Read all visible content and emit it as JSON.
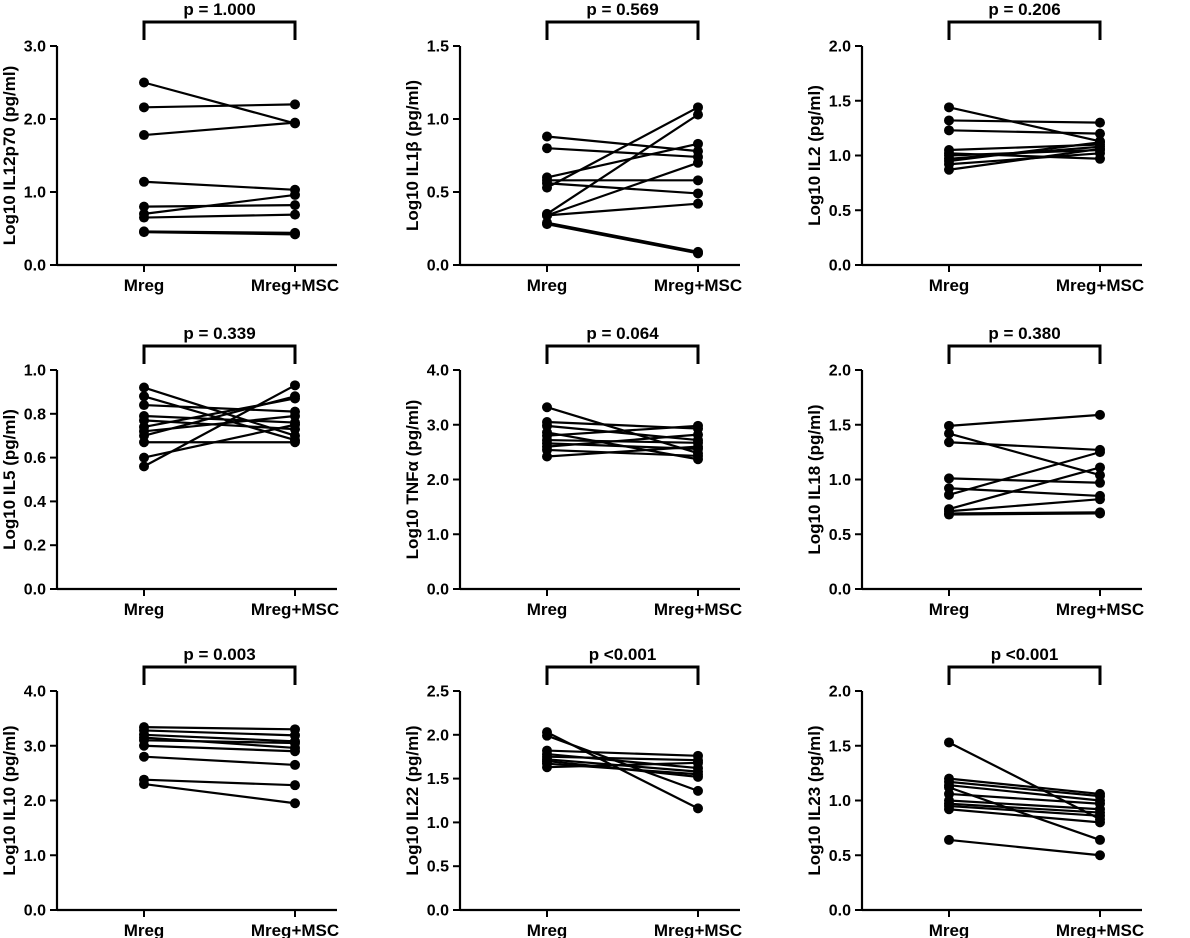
{
  "chart_data": [
    {
      "type": "line",
      "title": "p = 1.000",
      "ylabel": "Log10 IL12p70 (pg/ml)",
      "categories": [
        "Mreg",
        "Mreg+MSC"
      ],
      "ylim": [
        0,
        3
      ],
      "yticks": [
        0,
        1,
        2,
        3
      ],
      "tick_decimals": 1,
      "series": [
        {
          "values": [
            2.5,
            1.94
          ]
        },
        {
          "values": [
            2.16,
            2.2
          ]
        },
        {
          "values": [
            1.78,
            1.95
          ]
        },
        {
          "values": [
            1.14,
            1.03
          ]
        },
        {
          "values": [
            0.8,
            0.82
          ]
        },
        {
          "values": [
            0.7,
            0.96
          ]
        },
        {
          "values": [
            0.65,
            0.69
          ]
        },
        {
          "values": [
            0.46,
            0.44
          ]
        },
        {
          "values": [
            0.45,
            0.42
          ]
        }
      ]
    },
    {
      "type": "line",
      "title": "p = 0.569",
      "ylabel": "Log10 IL1β (pg/ml)",
      "categories": [
        "Mreg",
        "Mreg+MSC"
      ],
      "ylim": [
        0,
        1.5
      ],
      "yticks": [
        0,
        0.5,
        1,
        1.5
      ],
      "tick_decimals": 1,
      "series": [
        {
          "values": [
            0.88,
            0.78
          ]
        },
        {
          "values": [
            0.8,
            0.74
          ]
        },
        {
          "values": [
            0.6,
            0.83
          ]
        },
        {
          "values": [
            0.58,
            0.58
          ]
        },
        {
          "values": [
            0.56,
            0.49
          ]
        },
        {
          "values": [
            0.53,
            1.08
          ]
        },
        {
          "values": [
            0.35,
            1.03
          ]
        },
        {
          "values": [
            0.34,
            0.7
          ]
        },
        {
          "values": [
            0.34,
            0.42
          ]
        },
        {
          "values": [
            0.29,
            0.09
          ]
        },
        {
          "values": [
            0.28,
            0.08
          ]
        }
      ]
    },
    {
      "type": "line",
      "title": "p = 0.206",
      "ylabel": "Log10 IL2 (pg/ml)",
      "categories": [
        "Mreg",
        "Mreg+MSC"
      ],
      "ylim": [
        0,
        2
      ],
      "yticks": [
        0,
        0.5,
        1,
        1.5,
        2
      ],
      "tick_decimals": 1,
      "series": [
        {
          "values": [
            1.44,
            1.13
          ]
        },
        {
          "values": [
            1.32,
            1.3
          ]
        },
        {
          "values": [
            1.23,
            1.2
          ]
        },
        {
          "values": [
            1.05,
            1.1
          ]
        },
        {
          "values": [
            1.02,
            0.97
          ]
        },
        {
          "values": [
            1.0,
            1.05
          ]
        },
        {
          "values": [
            0.97,
            1.08
          ]
        },
        {
          "values": [
            0.95,
            1.12
          ]
        },
        {
          "values": [
            0.92,
            1.02
          ]
        },
        {
          "values": [
            0.87,
            1.06
          ]
        }
      ]
    },
    {
      "type": "line",
      "title": "p = 0.339",
      "ylabel": "Log10 IL5 (pg/ml)",
      "categories": [
        "Mreg",
        "Mreg+MSC"
      ],
      "ylim": [
        0,
        1
      ],
      "yticks": [
        0,
        0.2,
        0.4,
        0.6,
        0.8,
        1
      ],
      "tick_decimals": 1,
      "series": [
        {
          "values": [
            0.92,
            0.7
          ]
        },
        {
          "values": [
            0.88,
            0.68
          ]
        },
        {
          "values": [
            0.84,
            0.81
          ]
        },
        {
          "values": [
            0.79,
            0.76
          ]
        },
        {
          "values": [
            0.77,
            0.73
          ]
        },
        {
          "values": [
            0.74,
            0.87
          ]
        },
        {
          "values": [
            0.72,
            0.79
          ]
        },
        {
          "values": [
            0.7,
            0.88
          ]
        },
        {
          "values": [
            0.67,
            0.67
          ]
        },
        {
          "values": [
            0.6,
            0.75
          ]
        },
        {
          "values": [
            0.56,
            0.93
          ]
        }
      ]
    },
    {
      "type": "line",
      "title": "p = 0.064",
      "ylabel": "Log10 TNFα (pg/ml)",
      "categories": [
        "Mreg",
        "Mreg+MSC"
      ],
      "ylim": [
        0,
        4
      ],
      "yticks": [
        0,
        1,
        2,
        3,
        4
      ],
      "tick_decimals": 1,
      "series": [
        {
          "values": [
            3.32,
            2.48
          ]
        },
        {
          "values": [
            3.05,
            2.93
          ]
        },
        {
          "values": [
            2.98,
            2.72
          ]
        },
        {
          "values": [
            2.86,
            2.37
          ]
        },
        {
          "values": [
            2.8,
            2.98
          ]
        },
        {
          "values": [
            2.72,
            2.67
          ]
        },
        {
          "values": [
            2.66,
            2.56
          ]
        },
        {
          "values": [
            2.6,
            2.82
          ]
        },
        {
          "values": [
            2.54,
            2.43
          ]
        },
        {
          "values": [
            2.42,
            2.6
          ]
        }
      ]
    },
    {
      "type": "line",
      "title": "p = 0.380",
      "ylabel": "Log10 IL18 (pg/ml)",
      "categories": [
        "Mreg",
        "Mreg+MSC"
      ],
      "ylim": [
        0,
        2
      ],
      "yticks": [
        0,
        0.5,
        1,
        1.5,
        2
      ],
      "tick_decimals": 1,
      "series": [
        {
          "values": [
            1.49,
            1.59
          ]
        },
        {
          "values": [
            1.42,
            1.04
          ]
        },
        {
          "values": [
            1.34,
            1.27
          ]
        },
        {
          "values": [
            1.01,
            0.97
          ]
        },
        {
          "values": [
            0.92,
            0.85
          ]
        },
        {
          "values": [
            0.86,
            1.25
          ]
        },
        {
          "values": [
            0.73,
            1.11
          ]
        },
        {
          "values": [
            0.71,
            0.82
          ]
        },
        {
          "values": [
            0.69,
            0.7
          ]
        },
        {
          "values": [
            0.68,
            0.69
          ]
        }
      ]
    },
    {
      "type": "line",
      "title": "p = 0.003",
      "ylabel": "Log10 IL10 (pg/ml)",
      "categories": [
        "Mreg",
        "Mreg+MSC"
      ],
      "ylim": [
        0,
        4
      ],
      "yticks": [
        0,
        1,
        2,
        3,
        4
      ],
      "tick_decimals": 1,
      "series": [
        {
          "values": [
            3.34,
            3.3
          ]
        },
        {
          "values": [
            3.28,
            3.19
          ]
        },
        {
          "values": [
            3.2,
            3.08
          ]
        },
        {
          "values": [
            3.15,
            2.96
          ]
        },
        {
          "values": [
            3.1,
            3.05
          ]
        },
        {
          "values": [
            3.0,
            2.9
          ]
        },
        {
          "values": [
            2.8,
            2.65
          ]
        },
        {
          "values": [
            2.38,
            2.28
          ]
        },
        {
          "values": [
            2.3,
            1.95
          ]
        }
      ]
    },
    {
      "type": "line",
      "title": "p <0.001",
      "ylabel": "Log10 IL22 (pg/ml)",
      "categories": [
        "Mreg",
        "Mreg+MSC"
      ],
      "ylim": [
        0,
        2.5
      ],
      "yticks": [
        0,
        0.5,
        1,
        1.5,
        2,
        2.5
      ],
      "tick_decimals": 1,
      "series": [
        {
          "values": [
            2.03,
            1.16
          ]
        },
        {
          "values": [
            1.99,
            1.36
          ]
        },
        {
          "values": [
            1.82,
            1.76
          ]
        },
        {
          "values": [
            1.78,
            1.62
          ]
        },
        {
          "values": [
            1.75,
            1.71
          ]
        },
        {
          "values": [
            1.72,
            1.58
          ]
        },
        {
          "values": [
            1.7,
            1.52
          ]
        },
        {
          "values": [
            1.67,
            1.55
          ]
        },
        {
          "values": [
            1.63,
            1.68
          ]
        }
      ]
    },
    {
      "type": "line",
      "title": "p <0.001",
      "ylabel": "Log10 IL23 (pg/ml)",
      "categories": [
        "Mreg",
        "Mreg+MSC"
      ],
      "ylim": [
        0,
        2
      ],
      "yticks": [
        0,
        0.5,
        1,
        1.5,
        2
      ],
      "tick_decimals": 1,
      "series": [
        {
          "values": [
            1.53,
            0.83
          ]
        },
        {
          "values": [
            1.2,
            1.06
          ]
        },
        {
          "values": [
            1.17,
            1.04
          ]
        },
        {
          "values": [
            1.14,
            1.0
          ]
        },
        {
          "values": [
            1.12,
            0.64
          ]
        },
        {
          "values": [
            1.06,
            0.97
          ]
        },
        {
          "values": [
            1.0,
            0.92
          ]
        },
        {
          "values": [
            0.97,
            0.89
          ]
        },
        {
          "values": [
            0.95,
            0.86
          ]
        },
        {
          "values": [
            0.92,
            0.8
          ]
        },
        {
          "values": [
            0.64,
            0.5
          ]
        }
      ]
    }
  ]
}
